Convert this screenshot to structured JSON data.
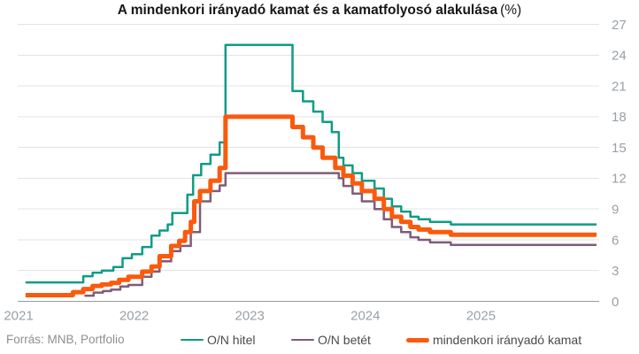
{
  "title": {
    "main": "A mindenkori irányadó kamat és a kamatfolyosó alakulása",
    "suffix": "(%)"
  },
  "source": "Forrás: MNB, Portfolio",
  "colors": {
    "teal": "#0e9c85",
    "purple": "#7e5c78",
    "orange": "#fa5a0d",
    "grid": "#e3e3e3",
    "axis": "#9b9b9b",
    "tick_label": "#9aa0a6",
    "legend_text": "#4a4a4a",
    "source_text": "#8f8f8f",
    "title_text": "#161616"
  },
  "legend": {
    "items": [
      {
        "id": "on-hitel",
        "label": "O/N hitel",
        "color": "#0e9c85",
        "height": 2.5
      },
      {
        "id": "on-betet",
        "label": "O/N betét",
        "color": "#7e5c78",
        "height": 2.5
      },
      {
        "id": "iranyado-kamat",
        "label": "mindenkori irányadó kamat",
        "color": "#fa5a0d",
        "height": 5
      }
    ]
  },
  "chart_data": {
    "type": "line",
    "step": true,
    "title": "A mindenkori irányadó kamat és a kamatfolyosó alakulása (%)",
    "xlabel": "",
    "ylabel": "%",
    "grid": true,
    "legend_position": "bottom",
    "y_axis_side": "right",
    "x": {
      "range": [
        2021.0,
        2026.0
      ],
      "ticks": [
        2021,
        2022,
        2023,
        2024,
        2025
      ]
    },
    "y": {
      "range": [
        0,
        27
      ],
      "ticks": [
        0,
        3,
        6,
        9,
        12,
        15,
        18,
        21,
        24,
        27
      ]
    },
    "series": [
      {
        "id": "on-hitel",
        "name": "O/N hitel",
        "color": "#0e9c85",
        "width": 2.5,
        "points": [
          [
            2021.06,
            1.85
          ],
          [
            2021.56,
            2.45
          ],
          [
            2021.64,
            2.8
          ],
          [
            2021.72,
            3.0
          ],
          [
            2021.82,
            3.35
          ],
          [
            2021.9,
            4.2
          ],
          [
            2021.98,
            4.6
          ],
          [
            2022.07,
            5.3
          ],
          [
            2022.15,
            6.4
          ],
          [
            2022.22,
            6.9
          ],
          [
            2022.29,
            7.5
          ],
          [
            2022.33,
            8.6
          ],
          [
            2022.46,
            10.4
          ],
          [
            2022.51,
            12.3
          ],
          [
            2022.58,
            13.4
          ],
          [
            2022.66,
            14.3
          ],
          [
            2022.74,
            15.5
          ],
          [
            2022.79,
            25.0
          ],
          [
            2023.37,
            20.5
          ],
          [
            2023.46,
            19.5
          ],
          [
            2023.55,
            18.5
          ],
          [
            2023.63,
            17.5
          ],
          [
            2023.71,
            16.5
          ],
          [
            2023.77,
            14.0
          ],
          [
            2023.81,
            13.25
          ],
          [
            2023.89,
            12.5
          ],
          [
            2023.97,
            11.75
          ],
          [
            2024.08,
            11.0
          ],
          [
            2024.16,
            10.0
          ],
          [
            2024.23,
            9.25
          ],
          [
            2024.31,
            8.75
          ],
          [
            2024.39,
            8.25
          ],
          [
            2024.46,
            8.0
          ],
          [
            2024.56,
            7.75
          ],
          [
            2024.74,
            7.5
          ]
        ]
      },
      {
        "id": "on-betet",
        "name": "O/N betét",
        "color": "#7e5c78",
        "width": 2.5,
        "points": [
          [
            2021.57,
            0.55
          ],
          [
            2021.65,
            0.85
          ],
          [
            2021.73,
            1.0
          ],
          [
            2021.8,
            1.15
          ],
          [
            2021.88,
            1.45
          ],
          [
            2021.95,
            1.6
          ],
          [
            2022.07,
            2.4
          ],
          [
            2022.15,
            2.9
          ],
          [
            2022.22,
            3.9
          ],
          [
            2022.32,
            4.9
          ],
          [
            2022.4,
            5.4
          ],
          [
            2022.49,
            6.75
          ],
          [
            2022.57,
            9.75
          ],
          [
            2022.66,
            10.75
          ],
          [
            2022.74,
            11.3
          ],
          [
            2022.79,
            12.5
          ],
          [
            2023.77,
            12.0
          ],
          [
            2023.81,
            11.25
          ],
          [
            2023.89,
            10.5
          ],
          [
            2023.97,
            9.75
          ],
          [
            2024.08,
            9.0
          ],
          [
            2024.16,
            8.0
          ],
          [
            2024.23,
            7.25
          ],
          [
            2024.31,
            6.75
          ],
          [
            2024.39,
            6.25
          ],
          [
            2024.46,
            6.0
          ],
          [
            2024.56,
            5.75
          ],
          [
            2024.74,
            5.5
          ]
        ]
      },
      {
        "id": "iranyado-kamat",
        "name": "mindenkori irányadó kamat",
        "color": "#fa5a0d",
        "width": 5,
        "points": [
          [
            2021.06,
            0.6
          ],
          [
            2021.47,
            0.9
          ],
          [
            2021.56,
            1.2
          ],
          [
            2021.64,
            1.5
          ],
          [
            2021.72,
            1.65
          ],
          [
            2021.8,
            1.8
          ],
          [
            2021.87,
            2.1
          ],
          [
            2021.95,
            2.4
          ],
          [
            2022.07,
            2.9
          ],
          [
            2022.15,
            3.4
          ],
          [
            2022.22,
            4.4
          ],
          [
            2022.32,
            5.4
          ],
          [
            2022.39,
            5.9
          ],
          [
            2022.44,
            6.75
          ],
          [
            2022.49,
            7.75
          ],
          [
            2022.52,
            9.75
          ],
          [
            2022.57,
            10.75
          ],
          [
            2022.66,
            11.75
          ],
          [
            2022.74,
            13.0
          ],
          [
            2022.79,
            18.0
          ],
          [
            2023.37,
            17.0
          ],
          [
            2023.46,
            16.0
          ],
          [
            2023.55,
            15.0
          ],
          [
            2023.63,
            14.0
          ],
          [
            2023.74,
            13.0
          ],
          [
            2023.81,
            12.25
          ],
          [
            2023.89,
            11.5
          ],
          [
            2023.97,
            10.75
          ],
          [
            2024.08,
            10.0
          ],
          [
            2024.16,
            9.0
          ],
          [
            2024.23,
            8.25
          ],
          [
            2024.31,
            7.75
          ],
          [
            2024.39,
            7.25
          ],
          [
            2024.46,
            7.0
          ],
          [
            2024.56,
            6.75
          ],
          [
            2024.74,
            6.5
          ]
        ]
      }
    ]
  }
}
